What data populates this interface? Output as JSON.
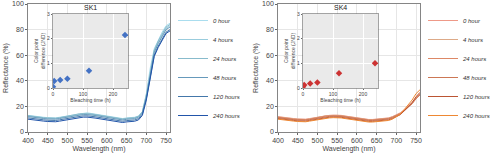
{
  "chart_data": [
    {
      "type": "line",
      "x": [
        400,
        410,
        420,
        430,
        440,
        450,
        460,
        470,
        480,
        490,
        500,
        510,
        520,
        530,
        540,
        550,
        560,
        570,
        580,
        590,
        600,
        610,
        620,
        630,
        640,
        650,
        660,
        670,
        680,
        690,
        700,
        710,
        720,
        730,
        740,
        750,
        760
      ],
      "series": [
        {
          "name": "0 hour",
          "color": "#aaddee",
          "values": [
            13,
            12.5,
            12,
            11.8,
            11.5,
            11.2,
            11.0,
            11.0,
            11.5,
            12,
            13,
            13.5,
            14,
            14.5,
            15,
            15,
            14.5,
            14,
            13.5,
            13,
            12.5,
            11.5,
            11,
            10.5,
            10.5,
            11,
            11,
            11.5,
            12.5,
            16,
            30,
            50,
            65,
            72,
            78,
            83,
            85
          ]
        },
        {
          "name": "4 hours",
          "color": "#99ccdd",
          "values": [
            12.5,
            12,
            11.5,
            11.2,
            11.0,
            10.8,
            10.5,
            10.5,
            11,
            11.5,
            12.5,
            13,
            13.5,
            14,
            14.2,
            14.2,
            14,
            13.5,
            13,
            12.5,
            12,
            11,
            10.5,
            10,
            10,
            10.5,
            10.5,
            11,
            12,
            15.5,
            28,
            47,
            63,
            70,
            76,
            81,
            83
          ]
        },
        {
          "name": "24 hours",
          "color": "#88bbcc",
          "values": [
            12.8,
            12.3,
            11.8,
            11.5,
            11.2,
            11.0,
            10.8,
            10.8,
            11.2,
            11.8,
            12.8,
            13.2,
            13.7,
            14.2,
            14.4,
            14.4,
            14.2,
            13.7,
            13.2,
            12.7,
            12.2,
            11.2,
            10.7,
            10.2,
            10.2,
            10.7,
            10.7,
            11.2,
            12.2,
            15.7,
            29,
            48,
            64,
            71,
            77,
            82,
            84
          ]
        },
        {
          "name": "48 hours",
          "color": "#6699bb",
          "values": [
            12,
            11.5,
            11,
            10.7,
            10.5,
            10.2,
            10,
            10,
            10.5,
            11,
            12,
            12.4,
            12.9,
            13.4,
            13.6,
            13.6,
            13.4,
            12.9,
            12.4,
            11.9,
            11.4,
            10.4,
            9.9,
            9.4,
            9.4,
            9.9,
            9.9,
            10.4,
            11.4,
            14.9,
            27,
            46,
            62,
            69,
            75,
            80,
            82
          ]
        },
        {
          "name": "120 hours",
          "color": "#4477aa",
          "values": [
            11,
            10.5,
            10,
            9.8,
            9.5,
            9.2,
            9,
            9,
            9.5,
            10,
            11,
            11.4,
            11.9,
            12.4,
            12.6,
            12.6,
            12.4,
            11.9,
            11.4,
            10.9,
            10.4,
            9.4,
            8.9,
            8.4,
            8.4,
            8.9,
            8.9,
            9.4,
            10.4,
            14.0,
            26,
            44,
            60,
            67,
            73,
            78,
            80
          ]
        },
        {
          "name": "240 hours",
          "color": "#2255aa",
          "values": [
            10,
            9.5,
            9,
            8.8,
            8.5,
            8.2,
            8,
            8,
            8.5,
            9,
            10,
            10.4,
            10.9,
            11.4,
            11.6,
            11.6,
            11.4,
            10.9,
            10.4,
            9.9,
            9.4,
            8.4,
            7.9,
            7.4,
            7.4,
            7.9,
            7.9,
            8.4,
            9.4,
            13.0,
            25,
            43,
            59,
            66,
            72,
            77,
            79
          ]
        }
      ],
      "xlim": [
        400,
        760
      ],
      "ylim": [
        0,
        100
      ],
      "xticks": [
        400,
        450,
        500,
        550,
        600,
        650,
        700,
        750
      ],
      "yticks": [
        0,
        20,
        40,
        60,
        80,
        100
      ],
      "xlabel": "Wavelength (nm)",
      "ylabel": "Reflectance (%)",
      "grid": true,
      "legend": "right"
    },
    {
      "type": "scatter",
      "title": "SK1",
      "x": [
        0,
        4,
        24,
        48,
        120,
        240
      ],
      "values": [
        0.05,
        0.28,
        0.32,
        0.38,
        0.7,
        2.15
      ],
      "color": "#4472c4",
      "marker": "diamond",
      "xlim": [
        0,
        250
      ],
      "ylim": [
        0,
        3
      ],
      "xticks": [
        0,
        100,
        200
      ],
      "yticks": [
        0,
        1,
        2,
        3
      ],
      "xlabel": "Bleaching time (h)",
      "ylabel": "Color point\ndifference (JND)",
      "grid": true
    },
    {
      "type": "line",
      "x": [
        400,
        410,
        420,
        430,
        440,
        450,
        460,
        470,
        480,
        490,
        500,
        510,
        520,
        530,
        540,
        550,
        560,
        570,
        580,
        590,
        600,
        610,
        620,
        630,
        640,
        650,
        660,
        670,
        680,
        690,
        700,
        710,
        720,
        730,
        740,
        750,
        760
      ],
      "series": [
        {
          "name": "0 hour",
          "color": "#ee9988",
          "values": [
            12.0,
            11.5,
            11.0,
            10.8,
            10.5,
            10.2,
            10.0,
            10.0,
            10.5,
            11.0,
            12.0,
            12.4,
            12.8,
            13.0,
            13.2,
            13.2,
            13.0,
            12.5,
            12.0,
            11.5,
            11.0,
            10.5,
            10.0,
            9.8,
            9.8,
            10.0,
            10.2,
            10.5,
            11.0,
            12.0,
            13.5,
            15.0,
            17.5,
            20.0,
            23.0,
            27.0,
            30.0
          ]
        },
        {
          "name": "4 hours",
          "color": "#ddaa88",
          "values": [
            11.8,
            11.3,
            10.8,
            10.6,
            10.3,
            10.0,
            9.8,
            9.8,
            10.2,
            10.8,
            11.8,
            12.2,
            12.6,
            12.8,
            13.0,
            13.0,
            12.8,
            12.3,
            11.8,
            11.3,
            10.8,
            10.3,
            9.8,
            9.6,
            9.6,
            9.8,
            10.0,
            10.3,
            10.8,
            11.8,
            13.0,
            14.5,
            17.0,
            19.5,
            22.5,
            26.5,
            29.5
          ]
        },
        {
          "name": "24 hours",
          "color": "#dd8866",
          "values": [
            11.5,
            11.0,
            10.5,
            10.3,
            10.0,
            9.8,
            9.6,
            9.6,
            10.0,
            10.6,
            11.6,
            12.0,
            12.4,
            12.6,
            12.8,
            12.8,
            12.6,
            12.1,
            11.6,
            11.1,
            10.6,
            10.1,
            9.6,
            9.4,
            9.4,
            9.6,
            9.8,
            10.1,
            10.6,
            11.6,
            13.0,
            14.5,
            17.0,
            19.5,
            22.5,
            26.5,
            29.5
          ]
        },
        {
          "name": "48 hours",
          "color": "#cc7755",
          "values": [
            11.2,
            10.7,
            10.2,
            10.0,
            9.7,
            9.4,
            9.2,
            9.2,
            9.7,
            10.2,
            11.2,
            11.6,
            12.0,
            12.2,
            12.4,
            12.4,
            12.2,
            11.7,
            11.2,
            10.7,
            10.2,
            9.7,
            9.2,
            9.0,
            9.0,
            9.2,
            9.4,
            9.7,
            10.2,
            11.2,
            12.5,
            14.0,
            16.5,
            19.0,
            22.0,
            26.0,
            29.0
          ]
        },
        {
          "name": "120 hours",
          "color": "#bb5533",
          "values": [
            10.5,
            10.0,
            9.5,
            9.3,
            9.0,
            8.7,
            8.5,
            8.5,
            9.0,
            9.5,
            10.5,
            10.9,
            11.3,
            11.5,
            11.7,
            11.7,
            11.5,
            11.0,
            10.5,
            10.0,
            9.5,
            9.0,
            8.5,
            8.3,
            8.3,
            8.5,
            8.7,
            9.0,
            9.5,
            10.5,
            12.0,
            13.5,
            16.5,
            19.5,
            23.0,
            27.5,
            31.0
          ]
        },
        {
          "name": "240 hours",
          "color": "#ee8833",
          "values": [
            10.0,
            9.5,
            9.0,
            8.8,
            8.5,
            8.2,
            8.0,
            8.0,
            8.5,
            9.0,
            10.0,
            10.4,
            10.8,
            11.0,
            11.2,
            11.2,
            11.0,
            10.5,
            10.0,
            9.5,
            9.0,
            8.5,
            8.0,
            7.8,
            7.8,
            8.0,
            8.2,
            8.5,
            9.0,
            10.0,
            12.0,
            14.0,
            17.5,
            21.0,
            25.0,
            30.0,
            33.0
          ]
        }
      ],
      "xlim": [
        400,
        760
      ],
      "ylim": [
        0,
        100
      ],
      "xticks": [
        400,
        450,
        500,
        550,
        600,
        650,
        700,
        750
      ],
      "yticks": [
        0,
        20,
        40,
        60,
        80,
        100
      ],
      "xlabel": "Wavelength (nm)",
      "ylabel": "Reflectance (%)",
      "grid": true,
      "legend": "right"
    },
    {
      "type": "scatter",
      "title": "SK4",
      "x": [
        0,
        4,
        24,
        48,
        120,
        240
      ],
      "values": [
        0.05,
        0.12,
        0.18,
        0.22,
        0.6,
        1.0
      ],
      "color": "#cc3333",
      "marker": "diamond",
      "xlim": [
        0,
        250
      ],
      "ylim": [
        0,
        3
      ],
      "xticks": [
        0,
        100,
        200
      ],
      "yticks": [
        0,
        1,
        2,
        3
      ],
      "xlabel": "Bleaching time (h)",
      "ylabel": "Color point\ndifference (JND)",
      "grid": true
    }
  ]
}
